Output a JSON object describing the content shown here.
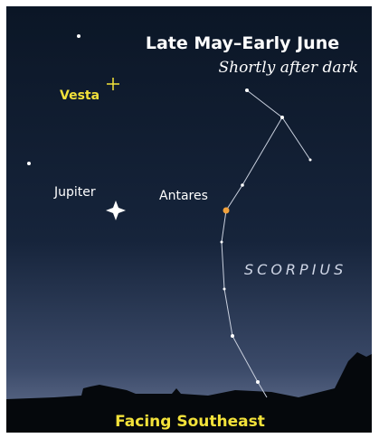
{
  "header": {
    "title": "Late May–Early June",
    "subtitle": "Shortly after dark"
  },
  "labels": {
    "vesta": "Vesta",
    "jupiter": "Jupiter",
    "antares": "Antares",
    "constellation": "SCORPIUS"
  },
  "footer": "Facing Southeast"
}
